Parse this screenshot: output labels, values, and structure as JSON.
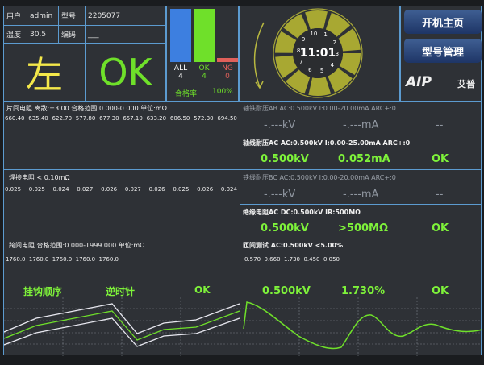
{
  "info": {
    "user_label": "用户",
    "user": "admin",
    "model_label": "型号",
    "model": "2205077",
    "temp_label": "温度",
    "temp": "30.5",
    "code_label": "编码",
    "code": "___"
  },
  "side": "左",
  "result": "OK",
  "stats": {
    "all_label": "ALL",
    "all": "4",
    "ok_label": "OK",
    "ok": "4",
    "ng_label": "NG",
    "ng": "0",
    "rate_label": "合格率:",
    "rate": "100%",
    "colors": {
      "all": "#3d7fe0",
      "ok": "#6fe02a",
      "ng": "#e0605a"
    }
  },
  "clock": {
    "time": "11:01",
    "numbers": [
      "1",
      "2",
      "3",
      "4",
      "5",
      "6",
      "7",
      "8",
      "9",
      "10"
    ]
  },
  "buttons": {
    "home": "开机主页",
    "model_mgmt": "型号管理"
  },
  "logo": {
    "text": "AIP",
    "cn": "艾普"
  },
  "piece_res": {
    "header": "片间电阻  离散:±3.00 合格范围:0.000-0.000 单位:mΩ",
    "values": [
      "660.40",
      "635.40",
      "622.70",
      "577.80",
      "677.30",
      "657.10",
      "633.20",
      "606.50",
      "572.30",
      "694.50"
    ]
  },
  "weld_res": {
    "header": "焊接电阻  < 0.10mΩ",
    "values": [
      "0.025",
      "0.025",
      "0.024",
      "0.027",
      "0.026",
      "0.027",
      "0.026",
      "0.025",
      "0.026",
      "0.024"
    ]
  },
  "span_res": {
    "header": "跨间电阻  合格范围:0.000-1999.000 单位:mΩ",
    "values": [
      "1760.0",
      "1760.0",
      "1760.0",
      "1760.0",
      "1760.0"
    ]
  },
  "hook": {
    "label": "挂钩顺序",
    "value": "逆时针",
    "result": "OK"
  },
  "hipot_ab": {
    "header": "轴铁耐压AB  AC:0.500kV  I:0.00-20.00mA ARC+:0",
    "kv": "-.---kV",
    "ma": "-.---mA",
    "result": "--"
  },
  "hipot_ac": {
    "header": "轴线耐压AC  AC:0.500kV  I:0.00-25.00mA ARC+:0",
    "kv": "0.500kV",
    "ma": "0.052mA",
    "result": "OK"
  },
  "hipot_bc": {
    "header": "铁线耐压BC  AC:0.500kV  I:0.00-20.00mA ARC+:0",
    "kv": "-.---kV",
    "ma": "-.---mA",
    "result": "--"
  },
  "insul": {
    "header": "绝缘电阻AC  DC:0.500kV  IR:500MΩ",
    "kv": "0.500kV",
    "ir": ">500MΩ",
    "result": "OK"
  },
  "turn": {
    "header": "匝间测试  AC:0.500kV  <5.00%",
    "values": [
      "0.570",
      "0.660",
      "1.730",
      "0.450",
      "0.050"
    ],
    "kv": "0.500kV",
    "pct": "1.730%",
    "result": "OK"
  }
}
